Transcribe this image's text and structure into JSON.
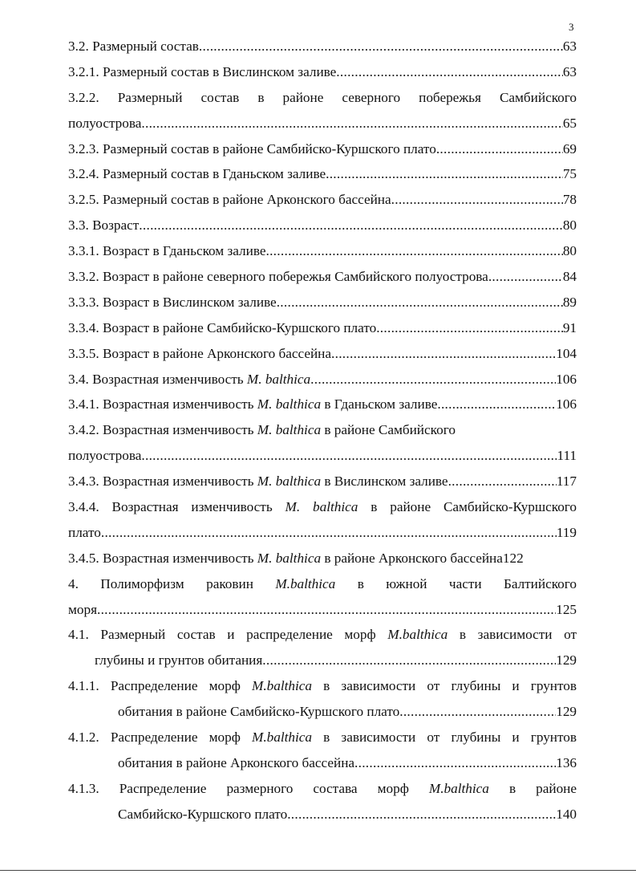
{
  "page_number": "3",
  "rows": [
    {
      "parts": [
        {
          "t": "3.2. Размерный состав"
        }
      ],
      "page": "63"
    },
    {
      "parts": [
        {
          "t": "3.2.1. Размерный состав в Вислинском заливе"
        }
      ],
      "page": "63"
    },
    {
      "parts": [
        {
          "t": "3.2.2. Размерный состав в районе северного побережья Самбийского"
        }
      ],
      "justify": true
    },
    {
      "parts": [
        {
          "t": "полуострова"
        }
      ],
      "page": "65"
    },
    {
      "parts": [
        {
          "t": "3.2.3. Размерный состав в районе Самбийско-Куршского плато"
        }
      ],
      "page": "69"
    },
    {
      "parts": [
        {
          "t": "3.2.4. Размерный состав в Гданьском заливе"
        }
      ],
      "page": "75"
    },
    {
      "parts": [
        {
          "t": "3.2.5. Размерный состав в районе Арконского бассейна"
        }
      ],
      "page": "78"
    },
    {
      "parts": [
        {
          "t": "3.3. Возраст"
        }
      ],
      "page": "80"
    },
    {
      "parts": [
        {
          "t": "3.3.1. Возраст в Гданьском заливе"
        }
      ],
      "page": "80"
    },
    {
      "parts": [
        {
          "t": "3.3.2. Возраст в районе северного побережья Самбийского полуострова"
        }
      ],
      "page": "84"
    },
    {
      "parts": [
        {
          "t": "3.3.3. Возраст в Вислинском заливе"
        }
      ],
      "page": "89"
    },
    {
      "parts": [
        {
          "t": "3.3.4. Возраст в районе Самбийско-Куршского плато"
        }
      ],
      "page": "91"
    },
    {
      "parts": [
        {
          "t": "3.3.5. Возраст в районе Арконского бассейна"
        }
      ],
      "page": "104"
    },
    {
      "parts": [
        {
          "t": "3.4. Возрастная изменчивость "
        },
        {
          "t": "M. balthica",
          "i": true
        }
      ],
      "page": "106"
    },
    {
      "parts": [
        {
          "t": "3.4.1. Возрастная изменчивость "
        },
        {
          "t": "M. balthica",
          "i": true
        },
        {
          "t": "  в Гданьском заливе"
        }
      ],
      "page": "106"
    },
    {
      "parts": [
        {
          "t": "3.4.2. Возрастная изменчивость "
        },
        {
          "t": "M. balthica",
          "i": true
        },
        {
          "t": " в районе Самбийского"
        }
      ]
    },
    {
      "parts": [
        {
          "t": "полуострова"
        }
      ],
      "page": "111"
    },
    {
      "parts": [
        {
          "t": "3.4.3. Возрастная изменчивость "
        },
        {
          "t": "M. balthica",
          "i": true
        },
        {
          "t": " в Вислинском заливе"
        }
      ],
      "page": "117"
    },
    {
      "parts": [
        {
          "t": "3.4.4. Возрастная изменчивость "
        },
        {
          "t": "M. balthica",
          "i": true
        },
        {
          "t": " в районе Самбийско-Куршского"
        }
      ],
      "justify": true
    },
    {
      "parts": [
        {
          "t": "плато"
        }
      ],
      "page": "119"
    },
    {
      "parts": [
        {
          "t": "3.4.5. Возрастная изменчивость "
        },
        {
          "t": "M. balthica",
          "i": true
        },
        {
          "t": " в районе Арконского бассейна"
        }
      ],
      "page": "122",
      "nodots": true
    },
    {
      "parts": [
        {
          "t": "4. Полиморфизм раковин "
        },
        {
          "t": "M.balthica",
          "i": true
        },
        {
          "t": " в южной части Балтийского"
        }
      ],
      "justify": true
    },
    {
      "parts": [
        {
          "t": "моря"
        }
      ],
      "page": "125"
    },
    {
      "parts": [
        {
          "t": "4.1. Размерный состав и распределение морф "
        },
        {
          "t": "M.balthica",
          "i": true
        },
        {
          "t": " в зависимости от"
        }
      ],
      "justify": true
    },
    {
      "parts": [
        {
          "t": "глубины и грунтов обитания"
        }
      ],
      "page": "129",
      "indent": 1
    },
    {
      "parts": [
        {
          "t": "4.1.1. Распределение морф "
        },
        {
          "t": "M.balthica",
          "i": true
        },
        {
          "t": " в зависимости от глубины и грунтов"
        }
      ],
      "justify": true
    },
    {
      "parts": [
        {
          "t": "обитания в районе Самбийско-Куршского плато"
        }
      ],
      "page": "129",
      "indent": 2
    },
    {
      "parts": [
        {
          "t": "4.1.2. Распределение морф "
        },
        {
          "t": "M.balthica",
          "i": true
        },
        {
          "t": " в зависимости от глубины и грунтов"
        }
      ],
      "justify": true
    },
    {
      "parts": [
        {
          "t": "обитания в районе Арконского бассейна"
        }
      ],
      "page": "136",
      "indent": 2
    },
    {
      "parts": [
        {
          "t": "4.1.3. Распределение размерного состава морф "
        },
        {
          "t": "M.balthica",
          "i": true
        },
        {
          "t": " в районе"
        }
      ],
      "justify": true
    },
    {
      "parts": [
        {
          "t": "Самбийско-Куршского плато"
        }
      ],
      "page": "140",
      "indent": 2
    }
  ]
}
